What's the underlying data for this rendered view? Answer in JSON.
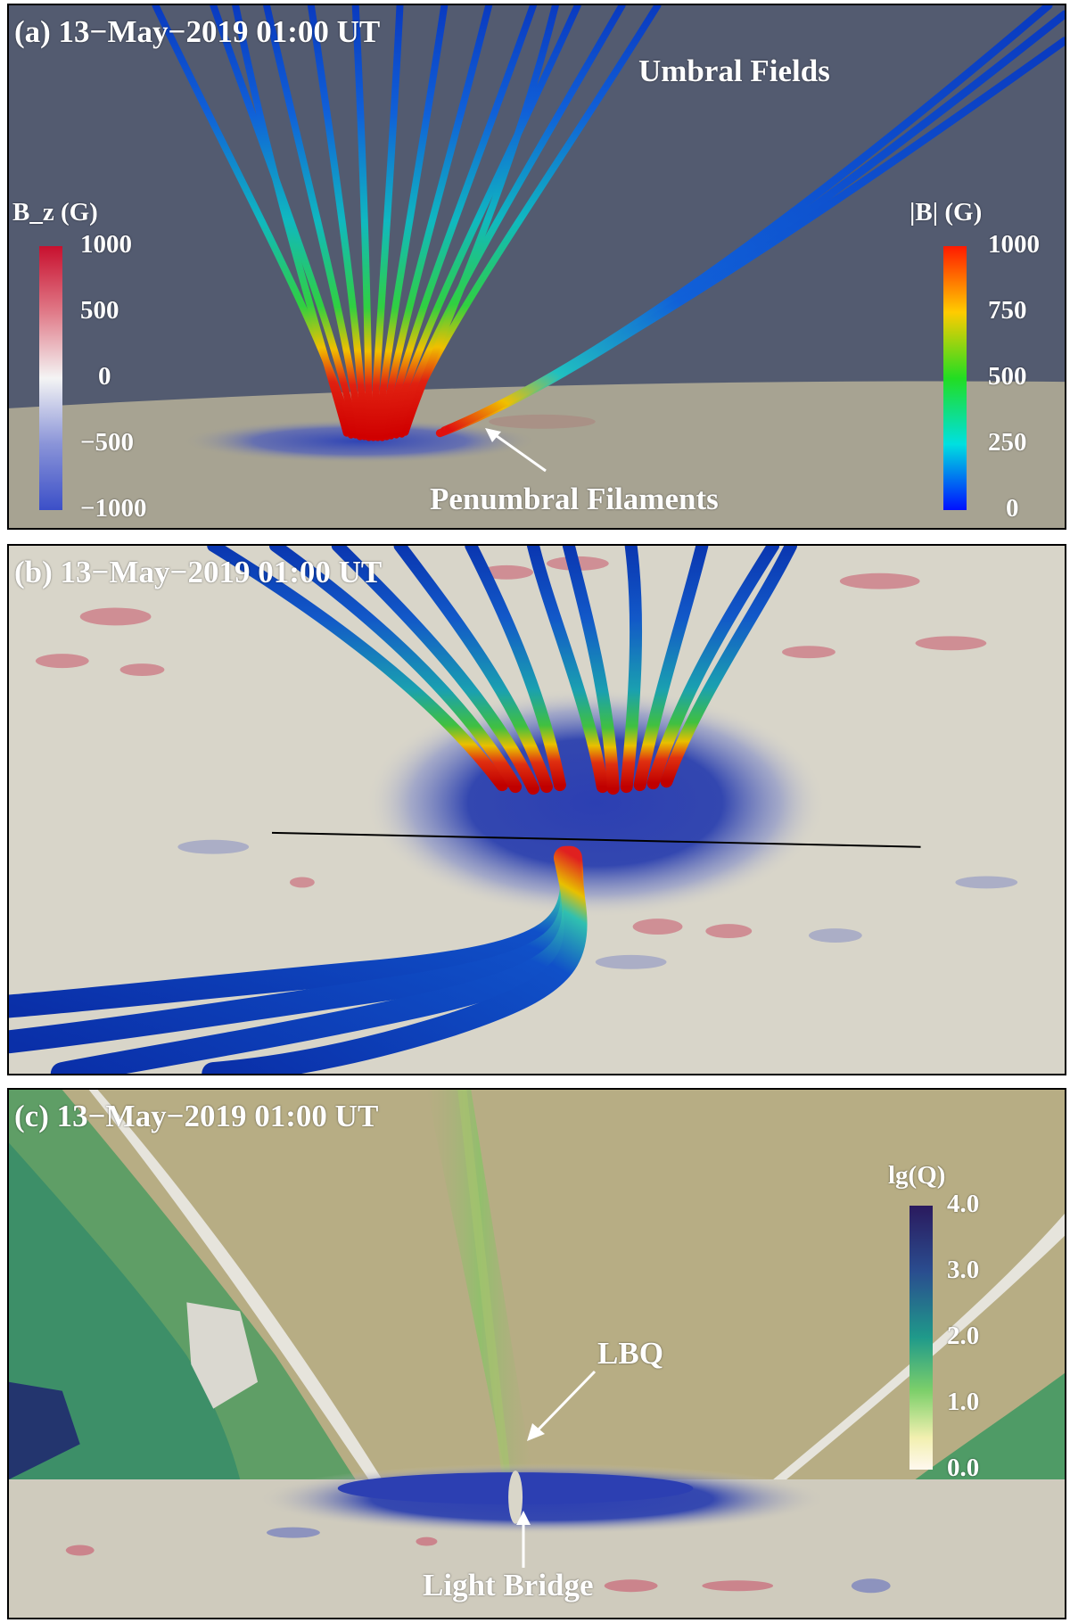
{
  "panels": [
    {
      "title": "(a) 13−May−2019 01:00 UT",
      "annotations": {
        "umbral": "Umbral Fields",
        "penumbral": "Penumbral Filaments"
      },
      "colorbar_left": {
        "title": "B_z (G)",
        "ticks": [
          "1000",
          "500",
          "0",
          "−500",
          "−1000"
        ],
        "colors": [
          "#c8102e",
          "#ffffff",
          "#3b4fc8"
        ]
      },
      "colorbar_right": {
        "title": "|B| (G)",
        "ticks": [
          "1000",
          "750",
          "500",
          "250",
          "0"
        ],
        "colors": [
          "#ff1a00",
          "#ffcc00",
          "#22dd22",
          "#00e0e0",
          "#0010ff"
        ]
      }
    },
    {
      "title": "(b) 13−May−2019 01:00 UT"
    },
    {
      "title": "(c) 13−May−2019 01:00 UT",
      "annotations": {
        "lbq": "LBQ",
        "light_bridge": "Light Bridge"
      },
      "colorbar": {
        "title": "lg(Q)",
        "ticks": [
          "4.0",
          "3.0",
          "2.0",
          "1.0",
          "0.0"
        ],
        "colors": [
          "#2a1a5e",
          "#2a4d8f",
          "#1f9a8a",
          "#7ccf6a",
          "#f2f0b0",
          "#fff8ef"
        ]
      }
    }
  ]
}
